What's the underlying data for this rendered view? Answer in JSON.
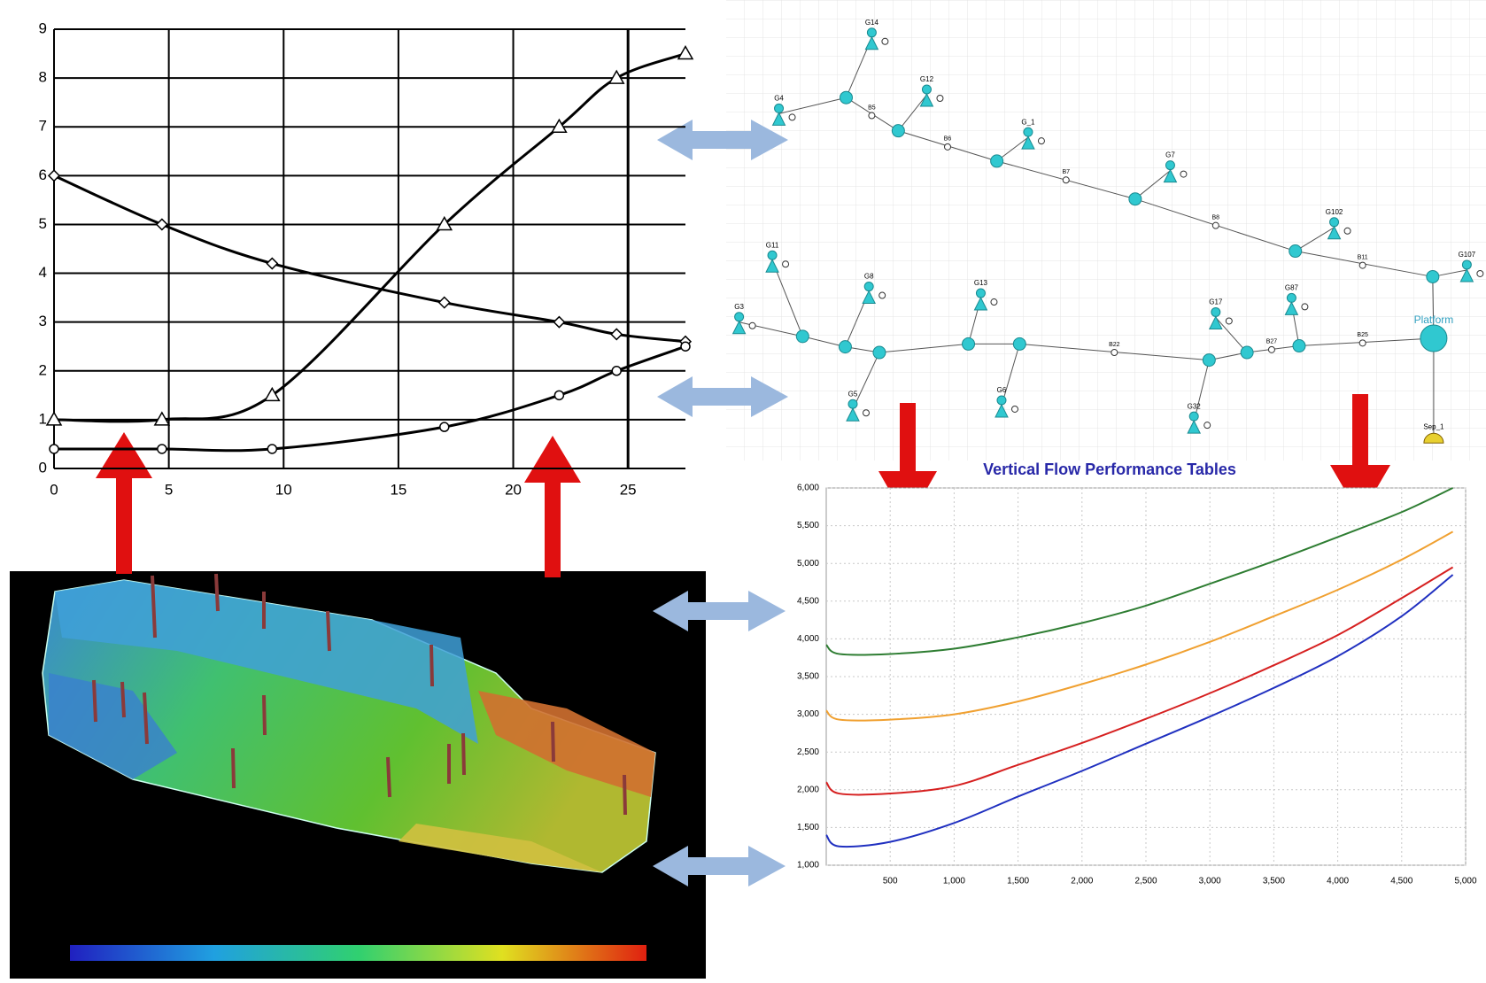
{
  "chart_data": [
    {
      "type": "line",
      "x": [
        0,
        4.7,
        9.5,
        17,
        22,
        24.5,
        27.5
      ],
      "series": [
        {
          "color": "#000000",
          "marker": "triangle",
          "values": [
            1,
            1,
            1.5,
            5,
            7,
            8,
            8.5
          ]
        },
        {
          "color": "#000000",
          "marker": "diamond",
          "values": [
            6,
            5,
            4.2,
            3.4,
            3,
            2.75,
            2.6
          ]
        },
        {
          "color": "#000000",
          "marker": "circle",
          "values": [
            0.4,
            0.4,
            0.4,
            0.85,
            1.5,
            2,
            2.5
          ]
        }
      ],
      "xlim": [
        0,
        27.5
      ],
      "xticks": [
        0,
        5,
        10,
        15,
        20,
        25
      ],
      "ylim": [
        0,
        9
      ],
      "yticks": [
        0,
        1,
        2,
        3,
        4,
        5,
        6,
        7,
        8,
        9
      ],
      "grid": true
    },
    {
      "type": "line",
      "title": "Vertical Flow Performance Tables",
      "x": [
        0,
        100,
        500,
        1000,
        1500,
        2000,
        2500,
        3000,
        3500,
        4000,
        4500,
        4900
      ],
      "series": [
        {
          "color": "#2e7d32",
          "values": [
            3920,
            3800,
            3800,
            3870,
            4020,
            4210,
            4440,
            4730,
            5030,
            5350,
            5680,
            6000
          ]
        },
        {
          "color": "#f0a030",
          "values": [
            3050,
            2930,
            2930,
            3000,
            3170,
            3400,
            3660,
            3960,
            4300,
            4650,
            5050,
            5420
          ]
        },
        {
          "color": "#d62020",
          "values": [
            2100,
            1950,
            1950,
            2050,
            2330,
            2620,
            2940,
            3280,
            3650,
            4050,
            4540,
            4950
          ]
        },
        {
          "color": "#2030c0",
          "values": [
            1400,
            1250,
            1310,
            1560,
            1910,
            2250,
            2610,
            2970,
            3350,
            3770,
            4300,
            4850
          ]
        }
      ],
      "xlim": [
        0,
        5000
      ],
      "xticks": [
        500,
        {
          "value": 1000,
          "label": "1,000"
        },
        {
          "value": 1500,
          "label": "1,500"
        },
        {
          "value": 2000,
          "label": "2,000"
        },
        {
          "value": 2500,
          "label": "2,500"
        },
        {
          "value": 3000,
          "label": "3,000"
        },
        {
          "value": 3500,
          "label": "3,500"
        },
        {
          "value": 4000,
          "label": "4,000"
        },
        {
          "value": 4500,
          "label": "4,500"
        },
        {
          "value": 5000,
          "label": "5,000"
        }
      ],
      "ylim": [
        1000,
        6000
      ],
      "yticks": [
        {
          "value": 1000,
          "label": "1,000"
        },
        {
          "value": 1500,
          "label": "1,500"
        },
        {
          "value": 2000,
          "label": "2,000"
        },
        {
          "value": 2500,
          "label": "2,500"
        },
        {
          "value": 3000,
          "label": "3,000"
        },
        {
          "value": 3500,
          "label": "3,500"
        },
        {
          "value": 4000,
          "label": "4,000"
        },
        {
          "value": 4500,
          "label": "4,500"
        },
        {
          "value": 5000,
          "label": "5,000"
        },
        {
          "value": 5500,
          "label": "5,500"
        },
        {
          "value": 6000,
          "label": "6,000"
        }
      ],
      "grid": true
    }
  ],
  "network": {
    "wells": [
      "G14",
      "G12",
      "G4",
      "G_1",
      "G7",
      "G102",
      "G11",
      "G3",
      "G8",
      "G13",
      "G17",
      "G87",
      "G5",
      "G6",
      "G32",
      "G107"
    ],
    "platform": "Platform",
    "separator": "Sep_1",
    "branches": [
      "B5",
      "B6",
      "B7",
      "B8",
      "B11",
      "B22",
      "B27",
      "B25"
    ]
  }
}
